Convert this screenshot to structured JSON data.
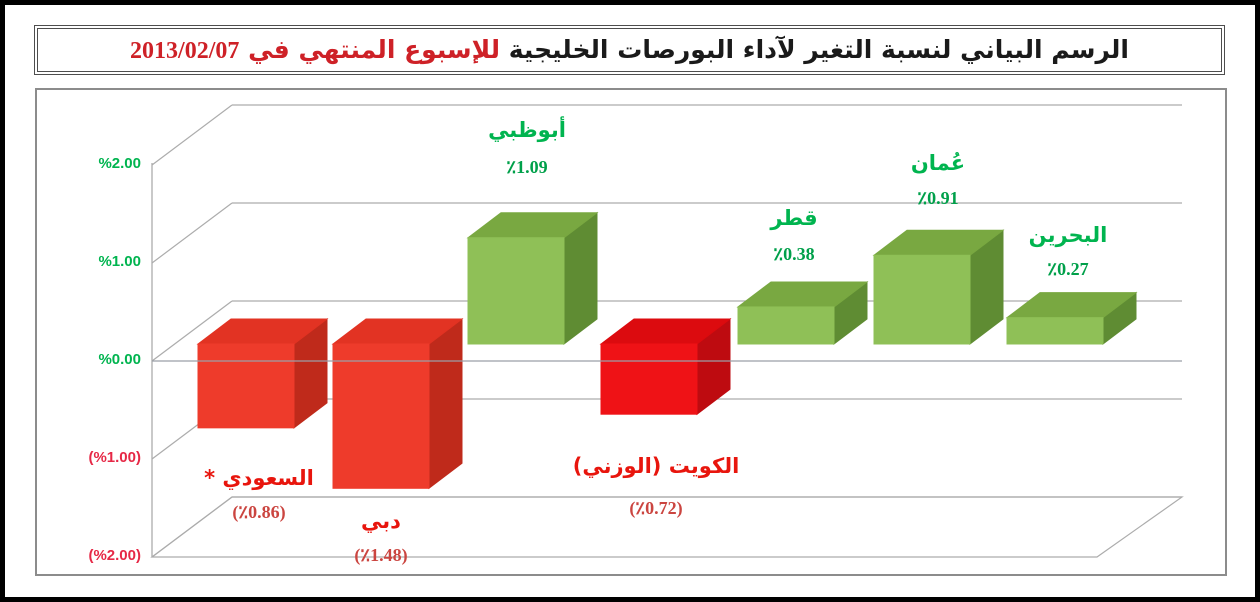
{
  "title": {
    "main": "الرسم البياني لنسبة التغير لآداء البورصات الخليجية",
    "highlight": "للإسبوع المنتهي في",
    "date": "2013/02/07"
  },
  "y_axis": {
    "labels": [
      {
        "text": "%2.00",
        "color": "#00B44F"
      },
      {
        "text": "%1.00",
        "color": "#00B44F"
      },
      {
        "text": "%0.00",
        "color": "#00B44F"
      },
      {
        "text": "(%1.00)",
        "color": "#E62846"
      },
      {
        "text": "(%2.00)",
        "color": "#E62846"
      }
    ]
  },
  "chart_data": {
    "type": "bar",
    "title": "الرسم البياني لنسبة التغير لآداء البورصات الخليجية للإسبوع المنتهي في 2013/02/07",
    "unit": "% weekly change",
    "ylim": [
      -2,
      2
    ],
    "y_ticks": [
      2.0,
      1.0,
      0.0,
      -1.0,
      -2.0
    ],
    "grid": true,
    "legend": "none",
    "projection": "3d-column",
    "categories": [
      "السعودي *",
      "دبي",
      "أبوظبي",
      "الكويت (الوزني)",
      "قطر",
      "عُمان",
      "البحرين"
    ],
    "values": [
      -0.86,
      -1.48,
      1.09,
      -0.72,
      0.38,
      0.91,
      0.27
    ],
    "markets": [
      {
        "id": "saudi",
        "name": "السعودي *",
        "value": -0.86,
        "value_label": "(٪0.86)",
        "palette": "red"
      },
      {
        "id": "dubai",
        "name": "دبي",
        "value": -1.48,
        "value_label": "(٪1.48)",
        "palette": "red"
      },
      {
        "id": "abu-dhabi",
        "name": "أبوظبي",
        "value": 1.09,
        "value_label": "٪1.09",
        "palette": "green"
      },
      {
        "id": "kuwait-weighted",
        "name": "الكويت (الوزني)",
        "value": -0.72,
        "value_label": "(٪0.72)",
        "palette": "kuwait"
      },
      {
        "id": "qatar",
        "name": "قطر",
        "value": 0.38,
        "value_label": "٪0.38",
        "palette": "green"
      },
      {
        "id": "oman",
        "name": "عُمان",
        "value": 0.91,
        "value_label": "٪0.91",
        "palette": "green"
      },
      {
        "id": "bahrain",
        "name": "البحرين",
        "value": 0.27,
        "value_label": "٪0.27",
        "palette": "green"
      }
    ],
    "palettes": {
      "red": {
        "front": "#EE3B2B",
        "top": "#E23323",
        "side": "#BF2A1B",
        "label": "#E8150D",
        "value": "#CB4540"
      },
      "kuwait": {
        "front": "#EF1216",
        "top": "#DC0B0F",
        "side": "#BE0B10",
        "label": "#E8150D",
        "value": "#CB4540"
      },
      "green": {
        "front": "#8FC057",
        "top": "#79A841",
        "side": "#5F8C33",
        "label": "#00B44F",
        "value": "#00A04A"
      }
    }
  },
  "colors": {
    "grid": "#ACACAC",
    "zero_line": "#9A9FA8",
    "frame": "#8C8C8C",
    "title_black": "#1A1A1A",
    "title_red": "#CE2127"
  }
}
